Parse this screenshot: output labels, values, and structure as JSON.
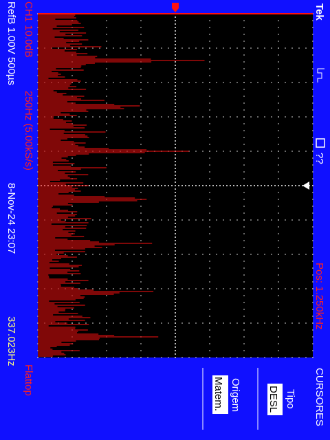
{
  "header": {
    "brand": "Tek",
    "trigger_status": "??",
    "position": "Pos: 1.250kHz"
  },
  "channel": {
    "scale": "CH1 10.0dB",
    "span": "250Hz (5.00kS/s)",
    "window": "Flattop"
  },
  "reference": {
    "setting": "RefB 1.00V 500µs",
    "date": "8-Nov-24 23:07",
    "readout": "337.023Hz"
  },
  "menu": {
    "title": "CURSORES",
    "items": [
      {
        "label": "Tipo",
        "value": "DESL"
      },
      {
        "label": "Origem",
        "value": "Matem."
      }
    ]
  }
}
